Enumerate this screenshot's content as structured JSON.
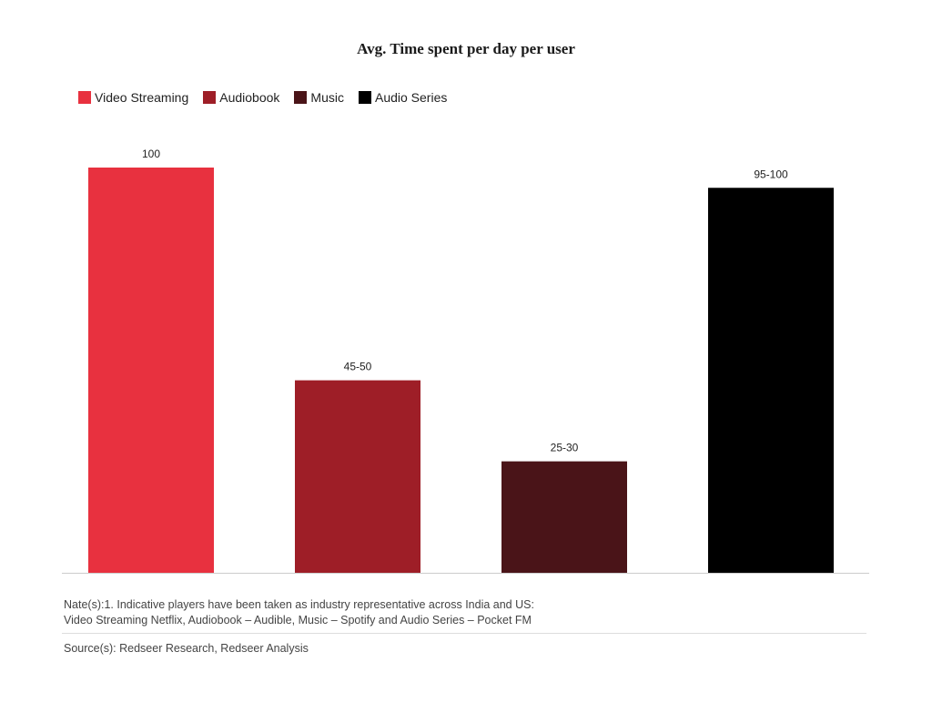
{
  "chart_data": {
    "type": "bar",
    "title": "Avg. Time spent per day per user",
    "categories": [
      "Video Streaming",
      "Audiobook",
      "Music",
      "Audio Series"
    ],
    "values": [
      100,
      47.5,
      27.5,
      95
    ],
    "value_labels": [
      "100",
      "45-50",
      "25-30",
      "95-100"
    ],
    "colors": [
      "#e8313f",
      "#9e1e27",
      "#4a1418",
      "#000000"
    ],
    "xlabel": "",
    "ylabel": "",
    "ylim": [
      0,
      100
    ],
    "grid": false,
    "legend_position": "top-left"
  },
  "notes": {
    "line1": "Nate(s):1. Indicative players have been taken as industry representative across India and US:",
    "line2": "Video Streaming Netflix, Audiobook – Audible, Music – Spotify and Audio Series – Pocket FM"
  },
  "source": "Source(s): Redseer Research, Redseer Analysis"
}
